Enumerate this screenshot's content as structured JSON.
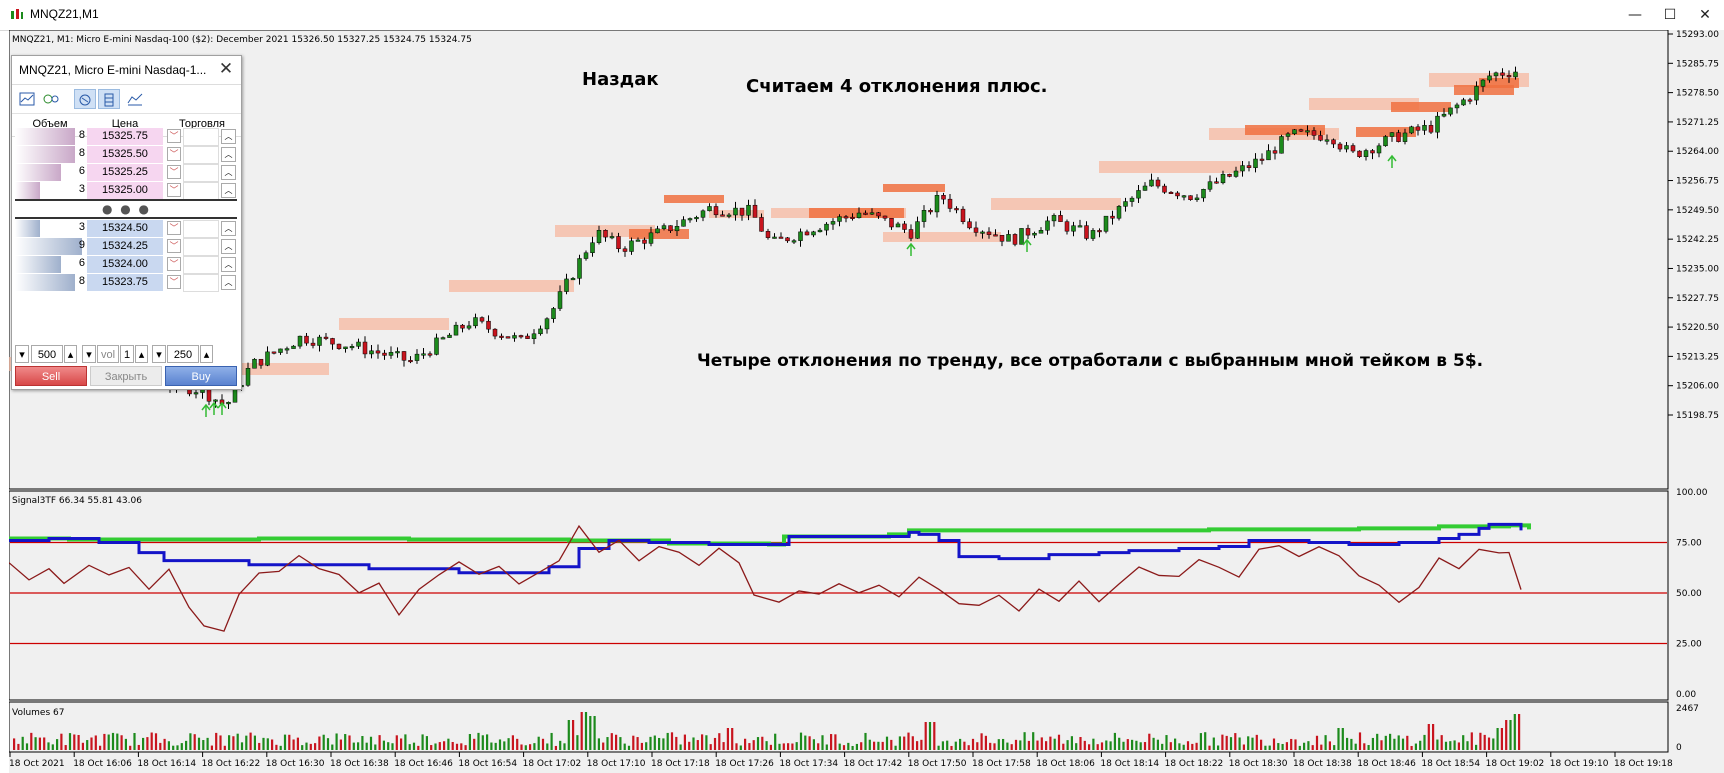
{
  "window": {
    "title": "MNQZ21,M1",
    "minimize": "—",
    "maximize": "☐",
    "close": "✕"
  },
  "chart": {
    "header": "MNQZ21, M1:  Micro E-mini Nasdaq-100 ($2): December 2021   15326.50  15327.25  15324.75  15324.75",
    "annotation_nasdaq": "Наздак",
    "annotation_count": "Считаем 4 отклонения плюс.",
    "annotation_result": "Четыре отклонения по тренду, все отработали с выбранным мной тейком в 5$.",
    "price_ticks": [
      "15293.00",
      "15285.75",
      "15278.50",
      "15271.25",
      "15264.00",
      "15256.75",
      "15249.50",
      "15242.25",
      "15235.00",
      "15227.75",
      "15220.50",
      "15213.25",
      "15206.00",
      "15198.75"
    ],
    "signal_label": "Signal3TF 66.34 55.81 43.06",
    "signal_ticks": [
      "100.00",
      "75.00",
      "50.00",
      "25.00",
      "0.00"
    ],
    "volume_label": "Volumes 67",
    "volume_ticks": [
      "2467",
      "0"
    ],
    "time_ticks": [
      "18 Oct 2021",
      "18 Oct 16:06",
      "18 Oct 16:14",
      "18 Oct 16:22",
      "18 Oct 16:30",
      "18 Oct 16:38",
      "18 Oct 16:46",
      "18 Oct 16:54",
      "18 Oct 17:02",
      "18 Oct 17:10",
      "18 Oct 17:18",
      "18 Oct 17:26",
      "18 Oct 17:34",
      "18 Oct 17:42",
      "18 Oct 17:50",
      "18 Oct 17:58",
      "18 Oct 18:06",
      "18 Oct 18:14",
      "18 Oct 18:22",
      "18 Oct 18:30",
      "18 Oct 18:38",
      "18 Oct 18:46",
      "18 Oct 18:54",
      "18 Oct 19:02",
      "18 Oct 19:10",
      "18 Oct 19:18"
    ]
  },
  "depth": {
    "title": "MNQZ21, Micro E-mini Nasdaq-1...",
    "close": "✕",
    "col_volume": "Объем",
    "col_price": "Цена",
    "col_trade": "Торговля",
    "asks": [
      {
        "volume": "8",
        "price": "15325.75",
        "depth": 0.85
      },
      {
        "volume": "8",
        "price": "15325.50",
        "depth": 0.85
      },
      {
        "volume": "6",
        "price": "15325.25",
        "depth": 0.65
      },
      {
        "volume": "3",
        "price": "15325.00",
        "depth": 0.35
      }
    ],
    "bids": [
      {
        "volume": "3",
        "price": "15324.50",
        "depth": 0.35
      },
      {
        "volume": "9",
        "price": "15324.25",
        "depth": 0.95
      },
      {
        "volume": "6",
        "price": "15324.00",
        "depth": 0.65
      },
      {
        "volume": "8",
        "price": "15323.75",
        "depth": 0.85
      }
    ],
    "dots": "● ● ●",
    "qty1": "500",
    "vol_label": "vol",
    "vol_value": "1",
    "qty2": "250",
    "sell": "Sell",
    "close_pos": "Закрыть",
    "buy": "Buy"
  },
  "colors": {
    "bull": "#1c8a1c",
    "bear": "#c8141e",
    "zone_light": "#f7b8a0",
    "zone_dark": "#f07040",
    "signal_green": "#33cc33",
    "signal_blue": "#1414c8",
    "signal_brown": "#8b1a1a",
    "level_red": "#cc0000"
  }
}
